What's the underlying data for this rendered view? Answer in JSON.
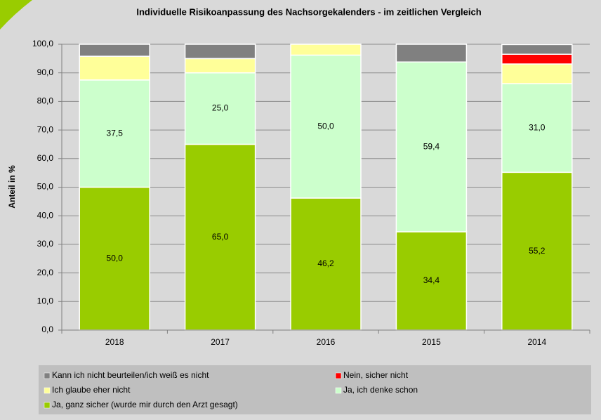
{
  "chart_data": {
    "type": "stacked_bar",
    "title": "Individuelle Risikoanpassung des Nachsorgekalenders - im zeitlichen Vergleich",
    "y_label": "Anteil in %",
    "categories": [
      "2018",
      "2017",
      "2016",
      "2015",
      "2014"
    ],
    "series": [
      {
        "name": "Ja, ganz sicher (wurde mir durch den Arzt gesagt)",
        "color": "#99cc00",
        "values": [
          50.0,
          65.0,
          46.2,
          34.4,
          55.2
        ],
        "value_labels": [
          "50,0",
          "65,0",
          "46,2",
          "34,4",
          "55,2"
        ]
      },
      {
        "name": "Ja, ich denke schon",
        "color": "#ccffcc",
        "values": [
          37.5,
          25.0,
          50.0,
          59.4,
          31.0
        ],
        "value_labels": [
          "37,5",
          "25,0",
          "50,0",
          "59,4",
          "31,0"
        ]
      },
      {
        "name": "Ich glaube eher nicht",
        "color": "#ffff99",
        "values": [
          8.3,
          5.0,
          3.8,
          0,
          6.9
        ]
      },
      {
        "name": "Nein, sicher nicht",
        "color": "#ff0000",
        "values": [
          0,
          0,
          0,
          0,
          3.4
        ]
      },
      {
        "name": "Kann ich nicht beurteilen/ich weiß es nicht",
        "color": "#808080",
        "values": [
          4.2,
          5.0,
          0,
          6.2,
          3.4
        ]
      }
    ],
    "ylim": [
      0,
      100
    ],
    "yticks": [
      {
        "value": 0,
        "label": "0,0"
      },
      {
        "value": 10,
        "label": "10,0"
      },
      {
        "value": 20,
        "label": "20,0"
      },
      {
        "value": 30,
        "label": "30,0"
      },
      {
        "value": 40,
        "label": "40,0"
      },
      {
        "value": 50,
        "label": "50,0"
      },
      {
        "value": 60,
        "label": "60,0"
      },
      {
        "value": 70,
        "label": "70,0"
      },
      {
        "value": 80,
        "label": "80,0"
      },
      {
        "value": 90,
        "label": "90,0"
      },
      {
        "value": 100,
        "label": "100,0"
      }
    ],
    "grid": true
  }
}
